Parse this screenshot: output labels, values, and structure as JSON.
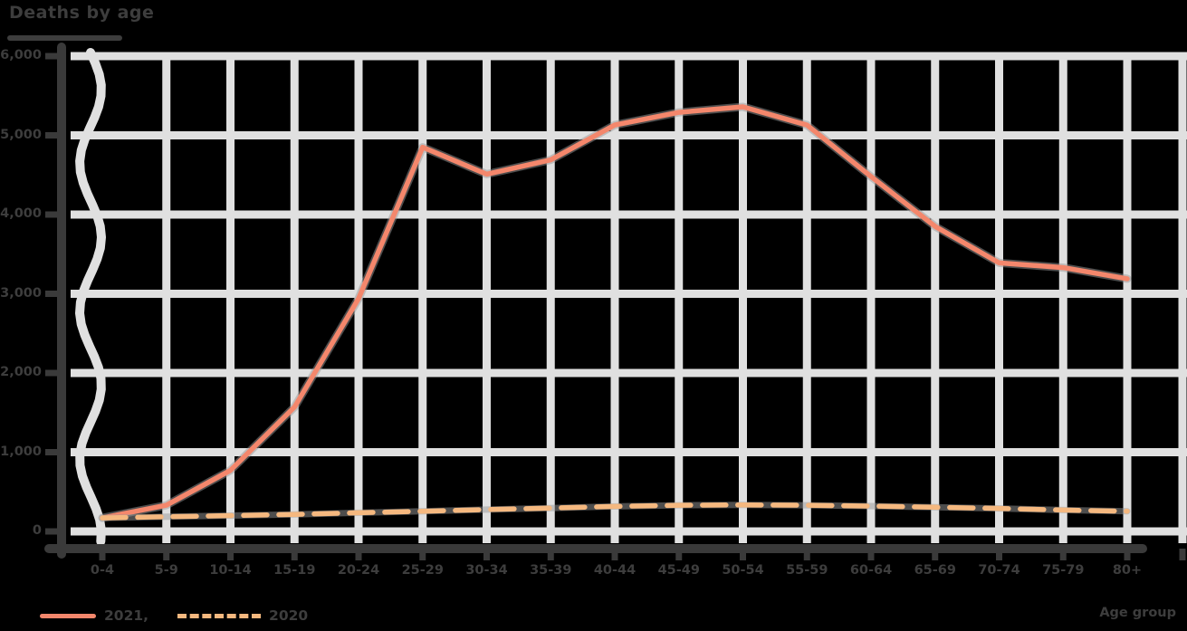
{
  "chart_data": {
    "type": "line",
    "title": "Deaths by age",
    "xlabel": "Age group",
    "ylabel": "",
    "categories": [
      "0-4",
      "5-9",
      "10-14",
      "15-19",
      "20-24",
      "25-29",
      "30-34",
      "35-39",
      "40-44",
      "45-49",
      "50-54",
      "55-59",
      "60-64",
      "65-69",
      "70-74",
      "75-79",
      "80+"
    ],
    "series": [
      {
        "name": "2021,",
        "line_style": "solid",
        "color": "#f4876c",
        "values": [
          170,
          330,
          770,
          1570,
          2940,
          4850,
          4510,
          4690,
          5130,
          5290,
          5360,
          5130,
          4480,
          3850,
          3390,
          3330,
          3190
        ]
      },
      {
        "name": "2020",
        "line_style": "dashed",
        "color": "#f5b87f",
        "values": [
          170,
          185,
          200,
          215,
          235,
          255,
          275,
          295,
          315,
          330,
          335,
          330,
          320,
          305,
          290,
          270,
          255
        ]
      }
    ],
    "ylim": [
      0,
      6600
    ],
    "yticks": [
      "0",
      "1,000",
      "2,000",
      "3,000",
      "4,000",
      "5,000",
      "6,000"
    ],
    "grid": true,
    "legend_position": "bottom-left"
  },
  "colors": {
    "background": "#000000",
    "grid": "#e0e0e0",
    "spine": "#3a3a3a",
    "text": "#3d3d3d",
    "series_solid": "#f4876c",
    "series_dashed": "#f5b87f"
  }
}
